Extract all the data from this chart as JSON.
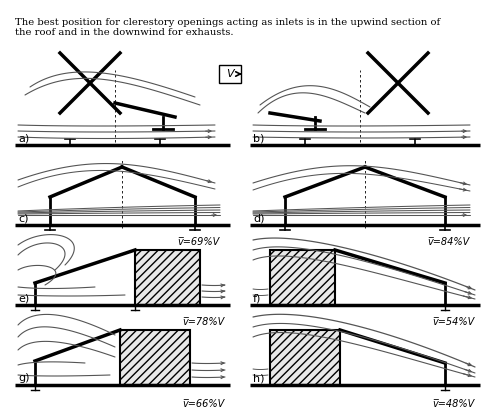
{
  "title_line1": "The best position for clerestory openings acting as inlets is in the upwind section of",
  "title_line2": "the roof and in the downwind for exhausts.",
  "background_color": "#ffffff",
  "vel_c": "v=69%V",
  "vel_d": "v=84%V",
  "vel_e": "v=78%V",
  "vel_f": "v=54%V",
  "vel_g": "v=66%V",
  "vel_h": "v=48%V"
}
